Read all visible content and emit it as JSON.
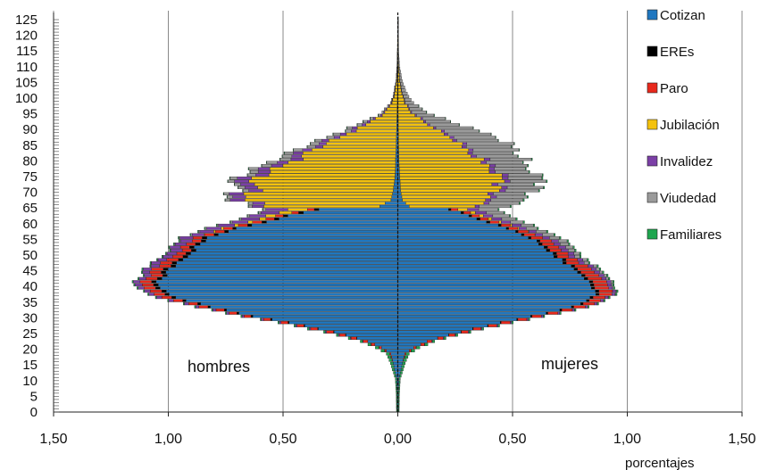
{
  "chart_data": {
    "type": "bar",
    "subtype": "population-pyramid",
    "orientation": "horizontal-stacked",
    "title": "",
    "xlabel": "porcentajes",
    "ylabel": "",
    "sides": {
      "left": "hombres",
      "right": "mujeres"
    },
    "xlim": [
      -1.5,
      1.5
    ],
    "x_ticks": [
      "1,50",
      "1,00",
      "0,50",
      "0,00",
      "0,50",
      "1,00",
      "1,50"
    ],
    "ylim": [
      0,
      125
    ],
    "y_ticks": [
      "0",
      "5",
      "10",
      "15",
      "20",
      "25",
      "30",
      "35",
      "40",
      "45",
      "50",
      "55",
      "60",
      "65",
      "70",
      "75",
      "80",
      "85",
      "90",
      "95",
      "100",
      "105",
      "110",
      "115",
      "120",
      "125"
    ],
    "grid": {
      "vertical": true,
      "horizontal": false
    },
    "legend_position": "right",
    "series": [
      {
        "name": "Cotizan",
        "color": "#1F77C0"
      },
      {
        "name": "EREs",
        "color": "#000000"
      },
      {
        "name": "Paro",
        "color": "#E8291C"
      },
      {
        "name": "Jubilación",
        "color": "#F4C20D"
      },
      {
        "name": "Invalidez",
        "color": "#7B3FA6"
      },
      {
        "name": "Viudedad",
        "color": "#9A9A9A"
      },
      {
        "name": "Familiares",
        "color": "#1FA64F"
      }
    ],
    "age_points": [
      0,
      5,
      10,
      15,
      18,
      20,
      22,
      25,
      28,
      30,
      33,
      35,
      38,
      40,
      42,
      45,
      48,
      50,
      53,
      55,
      58,
      60,
      63,
      64,
      65,
      67,
      70,
      73,
      75,
      78,
      80,
      83,
      85,
      88,
      90,
      93,
      95,
      98,
      100,
      105,
      110,
      115,
      120,
      125
    ],
    "men": {
      "Cotizan": [
        0.003,
        0.003,
        0.005,
        0.02,
        0.03,
        0.07,
        0.13,
        0.28,
        0.48,
        0.62,
        0.82,
        0.92,
        1.01,
        1.04,
        1.03,
        0.99,
        0.95,
        0.91,
        0.86,
        0.82,
        0.71,
        0.58,
        0.42,
        0.35,
        0.08,
        0.03,
        0.02,
        0.015,
        0.012,
        0.01,
        0.01,
        0.008,
        0.007,
        0.006,
        0.005,
        0.004,
        0.003,
        0.002,
        0.002,
        0.001,
        0.001,
        0.001,
        0.0005,
        0.0005
      ],
      "EREs": [
        0,
        0,
        0,
        0,
        0,
        0,
        0,
        0.002,
        0.005,
        0.008,
        0.01,
        0.015,
        0.02,
        0.02,
        0.02,
        0.02,
        0.02,
        0.02,
        0.02,
        0.02,
        0.015,
        0.02,
        0.02,
        0.02,
        0,
        0,
        0,
        0,
        0,
        0,
        0,
        0,
        0,
        0,
        0,
        0,
        0,
        0,
        0,
        0,
        0,
        0,
        0,
        0
      ],
      "Paro": [
        0,
        0,
        0,
        0,
        0.005,
        0.01,
        0.02,
        0.03,
        0.03,
        0.03,
        0.04,
        0.04,
        0.05,
        0.05,
        0.05,
        0.05,
        0.05,
        0.04,
        0.04,
        0.04,
        0.04,
        0.04,
        0.03,
        0.03,
        0,
        0,
        0,
        0,
        0,
        0,
        0,
        0,
        0,
        0,
        0,
        0,
        0,
        0,
        0,
        0,
        0,
        0,
        0,
        0
      ],
      "Jubilación": [
        0,
        0,
        0,
        0,
        0,
        0,
        0,
        0,
        0,
        0,
        0,
        0,
        0,
        0,
        0,
        0,
        0,
        0,
        0,
        0,
        0.01,
        0.02,
        0.05,
        0.08,
        0.48,
        0.6,
        0.62,
        0.6,
        0.56,
        0.5,
        0.44,
        0.36,
        0.3,
        0.22,
        0.16,
        0.09,
        0.05,
        0.025,
        0.015,
        0.005,
        0.002,
        0.001,
        0,
        0
      ],
      "Invalidez": [
        0,
        0,
        0,
        0,
        0,
        0.002,
        0.003,
        0.005,
        0.008,
        0.01,
        0.015,
        0.02,
        0.025,
        0.03,
        0.03,
        0.035,
        0.04,
        0.045,
        0.05,
        0.055,
        0.06,
        0.07,
        0.08,
        0.09,
        0.05,
        0.06,
        0.06,
        0.06,
        0.06,
        0.05,
        0.05,
        0.04,
        0.03,
        0.025,
        0.02,
        0.01,
        0.005,
        0.003,
        0.002,
        0.001,
        0,
        0,
        0,
        0
      ],
      "Viudedad": [
        0,
        0,
        0,
        0,
        0,
        0,
        0,
        0,
        0,
        0,
        0,
        0,
        0,
        0,
        0,
        0,
        0.002,
        0.003,
        0.004,
        0.005,
        0.006,
        0.008,
        0.01,
        0.012,
        0.015,
        0.02,
        0.025,
        0.03,
        0.035,
        0.04,
        0.045,
        0.04,
        0.035,
        0.03,
        0.025,
        0.015,
        0.008,
        0.004,
        0.003,
        0.001,
        0.001,
        0,
        0,
        0
      ],
      "Familiares": [
        0.003,
        0.004,
        0.006,
        0.012,
        0.015,
        0.015,
        0.01,
        0.008,
        0.006,
        0.005,
        0.005,
        0.005,
        0.005,
        0.005,
        0.005,
        0.005,
        0.004,
        0.004,
        0.004,
        0.004,
        0.004,
        0.003,
        0.003,
        0.003,
        0.002,
        0.002,
        0.002,
        0.002,
        0.002,
        0.002,
        0.002,
        0.001,
        0.001,
        0.001,
        0.001,
        0.001,
        0,
        0,
        0,
        0,
        0,
        0,
        0,
        0
      ]
    },
    "women": {
      "Cotizan": [
        0.003,
        0.003,
        0.005,
        0.02,
        0.03,
        0.07,
        0.13,
        0.27,
        0.45,
        0.58,
        0.75,
        0.83,
        0.86,
        0.84,
        0.8,
        0.76,
        0.71,
        0.67,
        0.62,
        0.58,
        0.48,
        0.38,
        0.27,
        0.22,
        0.05,
        0.02,
        0.012,
        0.01,
        0.008,
        0.006,
        0.005,
        0.004,
        0.003,
        0.003,
        0.002,
        0.002,
        0.001,
        0.001,
        0.001,
        0.001,
        0.0005,
        0.0005,
        0.0005,
        0.0005
      ],
      "EREs": [
        0,
        0,
        0,
        0,
        0,
        0,
        0,
        0.002,
        0.004,
        0.006,
        0.01,
        0.012,
        0.015,
        0.015,
        0.015,
        0.015,
        0.015,
        0.015,
        0.015,
        0.012,
        0.01,
        0.015,
        0.012,
        0.01,
        0,
        0,
        0,
        0,
        0,
        0,
        0,
        0,
        0,
        0,
        0,
        0,
        0,
        0,
        0,
        0,
        0,
        0,
        0,
        0
      ],
      "Paro": [
        0,
        0,
        0,
        0,
        0.005,
        0.01,
        0.02,
        0.03,
        0.04,
        0.04,
        0.05,
        0.05,
        0.06,
        0.06,
        0.06,
        0.06,
        0.05,
        0.05,
        0.05,
        0.05,
        0.04,
        0.04,
        0.03,
        0.03,
        0,
        0,
        0,
        0,
        0,
        0,
        0,
        0,
        0,
        0,
        0,
        0,
        0,
        0,
        0,
        0,
        0,
        0,
        0,
        0
      ],
      "Jubilación": [
        0,
        0,
        0,
        0,
        0,
        0,
        0,
        0,
        0,
        0,
        0,
        0,
        0,
        0,
        0,
        0,
        0,
        0,
        0,
        0,
        0.005,
        0.01,
        0.02,
        0.04,
        0.3,
        0.38,
        0.42,
        0.43,
        0.42,
        0.39,
        0.35,
        0.3,
        0.26,
        0.2,
        0.15,
        0.1,
        0.06,
        0.03,
        0.02,
        0.007,
        0.003,
        0.001,
        0,
        0
      ],
      "Invalidez": [
        0,
        0,
        0,
        0,
        0,
        0.002,
        0.003,
        0.004,
        0.006,
        0.008,
        0.01,
        0.012,
        0.015,
        0.018,
        0.02,
        0.022,
        0.025,
        0.028,
        0.03,
        0.032,
        0.035,
        0.04,
        0.045,
        0.05,
        0.02,
        0.025,
        0.025,
        0.025,
        0.025,
        0.025,
        0.025,
        0.02,
        0.02,
        0.015,
        0.01,
        0.008,
        0.005,
        0.003,
        0.002,
        0.001,
        0,
        0,
        0,
        0
      ],
      "Viudedad": [
        0,
        0,
        0,
        0,
        0,
        0,
        0,
        0,
        0,
        0,
        0,
        0.002,
        0.004,
        0.006,
        0.01,
        0.015,
        0.02,
        0.025,
        0.035,
        0.045,
        0.05,
        0.06,
        0.07,
        0.08,
        0.13,
        0.14,
        0.15,
        0.15,
        0.14,
        0.14,
        0.17,
        0.19,
        0.19,
        0.18,
        0.15,
        0.1,
        0.06,
        0.035,
        0.025,
        0.01,
        0.004,
        0.002,
        0.001,
        0
      ],
      "Familiares": [
        0.003,
        0.004,
        0.006,
        0.012,
        0.015,
        0.015,
        0.01,
        0.008,
        0.007,
        0.006,
        0.006,
        0.006,
        0.006,
        0.006,
        0.006,
        0.006,
        0.006,
        0.006,
        0.006,
        0.006,
        0.006,
        0.006,
        0.005,
        0.005,
        0.005,
        0.005,
        0.005,
        0.005,
        0.004,
        0.004,
        0.004,
        0.003,
        0.003,
        0.002,
        0.002,
        0.001,
        0.001,
        0,
        0,
        0,
        0,
        0,
        0,
        0
      ]
    }
  }
}
